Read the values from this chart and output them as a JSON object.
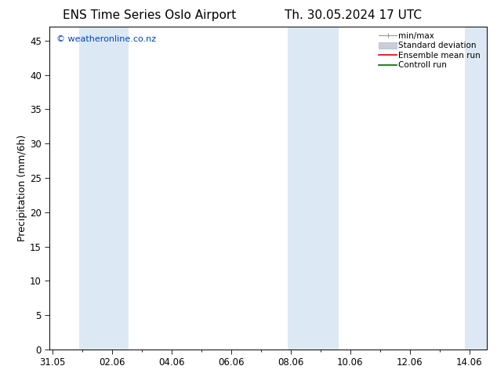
{
  "title_left": "ENS Time Series Oslo Airport",
  "title_right": "Th. 30.05.2024 17 UTC",
  "ylabel": "Precipitation (mm/6h)",
  "xlabel": "",
  "ylim": [
    0,
    47
  ],
  "yticks": [
    0,
    5,
    10,
    15,
    20,
    25,
    30,
    35,
    40,
    45
  ],
  "xtick_labels": [
    "31.05",
    "02.06",
    "04.06",
    "06.06",
    "08.06",
    "10.06",
    "12.06",
    "14.06"
  ],
  "xtick_positions": [
    0,
    2,
    4,
    6,
    8,
    10,
    12,
    14
  ],
  "xlim": [
    -0.1,
    14.6
  ],
  "watermark": "© weatheronline.co.nz",
  "watermark_color": "#0044bb",
  "bg_color": "#ffffff",
  "plot_bg_color": "#ffffff",
  "shaded_bands": [
    {
      "x_start": 0.9,
      "x_end": 2.55,
      "color": "#dce9f5"
    },
    {
      "x_start": 7.9,
      "x_end": 9.6,
      "color": "#dce9f5"
    },
    {
      "x_start": 13.85,
      "x_end": 14.6,
      "color": "#dce9f5"
    }
  ],
  "title_fontsize": 11,
  "tick_fontsize": 8.5,
  "label_fontsize": 9,
  "watermark_fontsize": 8,
  "legend_fontsize": 7.5
}
